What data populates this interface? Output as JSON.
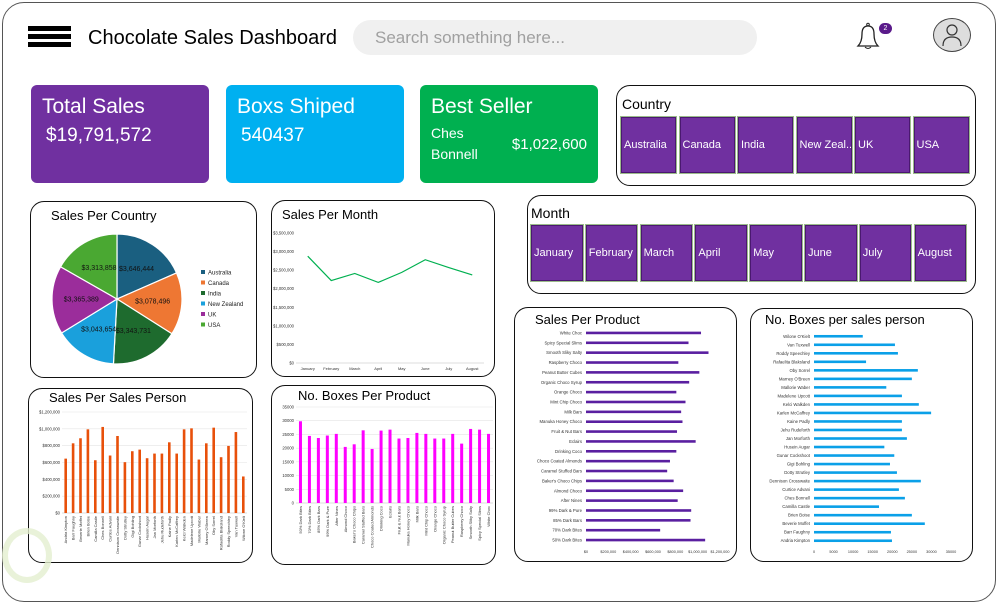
{
  "header": {
    "title": "Chocolate Sales Dashboard",
    "search_placeholder": "Search something here...",
    "notification_count": "2",
    "icons": [
      "menu-icon",
      "bell-icon",
      "user-avatar-icon"
    ]
  },
  "kpis": [
    {
      "label": "Total Sales",
      "value": "$19,791,572",
      "color": "#7030a0"
    },
    {
      "label": "Boxs Shiped",
      "value": "540437",
      "color": "#00b0f0"
    },
    {
      "label": "Best Seller",
      "name": "Ches Bonnell",
      "value": "$1,022,600",
      "color": "#00b050"
    }
  ],
  "country_slicer": {
    "title": "Country",
    "items": [
      "Australia",
      "Canada",
      "India",
      "New Zeal...",
      "UK",
      "USA"
    ]
  },
  "month_slicer": {
    "title": "Month",
    "items": [
      "January",
      "February",
      "March",
      "April",
      "May",
      "June",
      "July",
      "August"
    ]
  },
  "colors": {
    "slicer": "#7030a0",
    "line": "#00b050",
    "sales_person": "#e8500a",
    "boxes_product": "#ff00ff",
    "sales_product": "#5a1fa0",
    "boxes_person": "#0aa0e8"
  },
  "chart_data": [
    {
      "id": "country",
      "type": "pie",
      "title": "Sales Per Country",
      "legend": "right",
      "categories": [
        "Australia",
        "Canada",
        "India",
        "New Zealand",
        "UK",
        "USA"
      ],
      "values": [
        3646444,
        3078496,
        3343731,
        3043654,
        3365389,
        3313858
      ],
      "labels": [
        "$3,646,444",
        "$3,078,496",
        "$3,343,731",
        "$3,043,654",
        "$3,365,389",
        "$3,313,858"
      ],
      "colors": [
        "#1a5f80",
        "#ee7733",
        "#1e6b2e",
        "#1aa0dc",
        "#9b2d9b",
        "#4aa832"
      ]
    },
    {
      "id": "month",
      "type": "line",
      "title": "Sales Per Month",
      "categories": [
        "January",
        "February",
        "March",
        "April",
        "May",
        "June",
        "July",
        "August"
      ],
      "values": [
        2875000,
        2220000,
        2410000,
        2170000,
        2440000,
        2780000,
        2570000,
        2370000
      ],
      "ylim": [
        0,
        3500000
      ],
      "yticks": [
        "$0",
        "$500,000",
        "$1,000,000",
        "$1,500,000",
        "$2,000,000",
        "$2,500,000",
        "$3,000,000",
        "$3,500,000"
      ],
      "grid": false
    },
    {
      "id": "sales_person",
      "type": "bar",
      "title": "Sales Per Sales Person",
      "categories": [
        "Andria Kimpton",
        "Barr Faughny",
        "Beverie Moffet",
        "Brien Boise",
        "Camilla Castle",
        "Ches Bonnell",
        "Curtice Advani",
        "Dennison Crosswaite",
        "Dotty Strutley",
        "Gigi Bohling",
        "Gunar Cockshoot",
        "Husein Augar",
        "Jan Morforth",
        "Jehu Rudeforth",
        "Kaine Padly",
        "Karlen McCaffrey",
        "Kelci Walkden",
        "Madelene Upcott",
        "Mallorie Waber",
        "Marney O'Breen",
        "Oby Sorrel",
        "Rafaelita Blaksland",
        "Roddy Speechley",
        "Van Tuxwell",
        "Wilone O'Kielt"
      ],
      "values": [
        646000,
        828000,
        888000,
        994000,
        627000,
        1022600,
        683000,
        915000,
        604000,
        734000,
        753000,
        651000,
        706000,
        706000,
        840000,
        706000,
        994000,
        1006000,
        635000,
        828000,
        1014000,
        663000,
        797000,
        962000,
        434000
      ],
      "ylim": [
        0,
        1200000
      ],
      "yticks": [
        "$0",
        "$200,000",
        "$400,000",
        "$600,000",
        "$800,000",
        "$1,000,000",
        "$1,200,000"
      ],
      "grid": true
    },
    {
      "id": "boxes_product",
      "type": "bar",
      "title": "No. Boxes Per Product",
      "categories": [
        "50% Dark Bites",
        "70% Dark Bites",
        "85% Dark Bars",
        "99% Dark & Pure",
        "After Nines",
        "Almond Choco",
        "Baker's Choco Chips",
        "Caramel Stuffed Bars",
        "Choco Coated Almonds",
        "Drinking Coco",
        "Eclairs",
        "Fruit & Nut Bars",
        "Manuka Honey Choco",
        "Milk Bars",
        "Mint Chip Choco",
        "Orange Choco",
        "Organic Choco Syrup",
        "Peanut Butter Cubes",
        "Raspberry Choco",
        "Smooth Sliky Salty",
        "Spicy Special Slims",
        "White Choc"
      ],
      "values": [
        29800,
        24450,
        23700,
        24600,
        25200,
        20450,
        21400,
        26500,
        19700,
        26400,
        26750,
        23500,
        23700,
        25550,
        25200,
        23500,
        23500,
        25200,
        21650,
        27000,
        26750,
        25200
      ],
      "ylim": [
        0,
        35000
      ],
      "yticks": [
        "0",
        "5000",
        "10000",
        "15000",
        "20000",
        "25000",
        "30000",
        "35000"
      ],
      "grid": true
    },
    {
      "id": "sales_product",
      "type": "hbar",
      "title": "Sales Per Product",
      "categories": [
        "White Choc",
        "Spicy Special Slims",
        "Smooth Sliky Salty",
        "Raspberry Choco",
        "Peanut Butter Cubes",
        "Organic Choco Syrup",
        "Orange Choco",
        "Mint Chip Choco",
        "Milk Bars",
        "Manuka Honey Choco",
        "Fruit & Nut Bars",
        "Eclairs",
        "Drinking Coco",
        "Choco Coated Almonds",
        "Caramel Stuffed Bars",
        "Baker's Choco Chips",
        "Almond Choco",
        "After Nines",
        "99% Dark & Pure",
        "85% Dark Bars",
        "70% Dark Bites",
        "50% Dark Bites"
      ],
      "values": [
        1030000,
        918000,
        1097000,
        827000,
        1015000,
        924000,
        809000,
        891000,
        852000,
        864000,
        815000,
        982000,
        809000,
        752000,
        727000,
        785000,
        870000,
        821000,
        942000,
        936000,
        664000,
        1067000
      ],
      "xlim": [
        0,
        1200000
      ],
      "xticks": [
        "$0",
        "$200,000",
        "$400,000",
        "$600,000",
        "$800,000",
        "$1,000,000",
        "$1,200,000"
      ],
      "grid": false
    },
    {
      "id": "boxes_person",
      "type": "hbar",
      "title": "No. Boxes per sales person",
      "categories": [
        "Wilone O'Kielt",
        "Van Tuxwell",
        "Roddy Speechley",
        "Rafaelita Blaksland",
        "Oby Sorrel",
        "Marney O'Breen",
        "Mallorie Waber",
        "Madelene Upcott",
        "Kelci Walkden",
        "Karlen McCaffrey",
        "Kaine Padly",
        "Jehu Rudeforth",
        "Jan Morforth",
        "Husein Augar",
        "Gunar Cockshoot",
        "Gigi Bohling",
        "Dotty Strutley",
        "Dennison Crosswaite",
        "Curtice Advani",
        "Ches Bonnell",
        "Camilla Castle",
        "Brien Boise",
        "Beverie Moffet",
        "Barr Faughny",
        "Andria Kimpton"
      ],
      "values": [
        12460,
        20680,
        21440,
        13300,
        26530,
        25000,
        18470,
        22460,
        26780,
        29920,
        22460,
        22460,
        23730,
        17970,
        20510,
        19410,
        21190,
        27290,
        21690,
        23220,
        16610,
        25000,
        28310,
        19660,
        19920
      ],
      "xlim": [
        0,
        35000
      ],
      "xticks": [
        "0",
        "5000",
        "10000",
        "15000",
        "20000",
        "25000",
        "30000",
        "35000"
      ],
      "grid": false
    }
  ]
}
